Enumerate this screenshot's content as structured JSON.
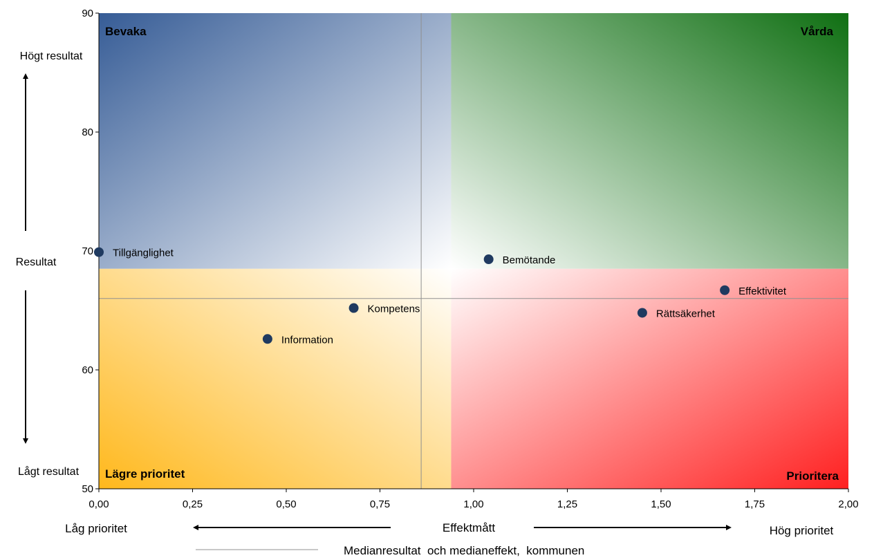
{
  "chart_data": {
    "type": "scatter",
    "x_range": [
      0,
      2
    ],
    "y_range": [
      50,
      90
    ],
    "x_ticks": [
      "0,00",
      "0,25",
      "0,50",
      "0,75",
      "1,00",
      "1,25",
      "1,50",
      "1,75",
      "2,00"
    ],
    "x_tick_values": [
      0,
      0.25,
      0.5,
      0.75,
      1.0,
      1.25,
      1.5,
      1.75,
      2.0
    ],
    "y_ticks": [
      "50",
      "60",
      "70",
      "80",
      "90"
    ],
    "y_tick_values": [
      50,
      60,
      70,
      80,
      90
    ],
    "xlabel": "Effektmått",
    "x_low_label": "Låg prioritet",
    "x_high_label": "Hög prioritet",
    "ylabel": "Resultat",
    "y_high_label": "Högt resultat",
    "y_low_label": "Lågt resultat",
    "quadrants": {
      "top_left": "Bevaka",
      "top_right": "Vårda",
      "bottom_left": "Lägre prioritet",
      "bottom_right": "Prioritera"
    },
    "quadrant_split": {
      "x": 0.94,
      "y": 68.5
    },
    "median": {
      "x": 0.86,
      "y": 66.0
    },
    "median_legend": "Medianresultat  och medianeffekt,  kommunen",
    "points": [
      {
        "label": "Tillgänglighet",
        "x": 0.0,
        "y": 69.9
      },
      {
        "label": "Bemötande",
        "x": 1.04,
        "y": 69.3
      },
      {
        "label": "Effektivitet",
        "x": 1.67,
        "y": 66.7
      },
      {
        "label": "Kompetens",
        "x": 0.68,
        "y": 65.2
      },
      {
        "label": "Rättsäkerhet",
        "x": 1.45,
        "y": 64.8
      },
      {
        "label": "Information",
        "x": 0.45,
        "y": 62.6
      }
    ],
    "colors": {
      "point": "#1f3a60",
      "bevaka": "#365c96",
      "varda": "#0f6f12",
      "lagre": "#ffb81c",
      "prioritera": "#ff2020",
      "median_line": "#909090"
    }
  }
}
